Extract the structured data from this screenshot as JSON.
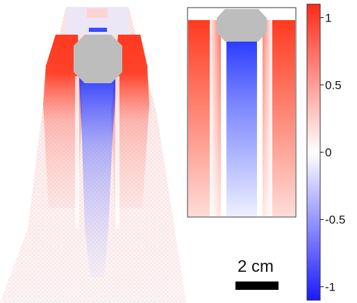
{
  "chart_data": {
    "type": "heatmap",
    "title": "",
    "panels": [
      {
        "name": "",
        "kind": "simulated-field"
      },
      {
        "name": "",
        "kind": "model-field"
      }
    ],
    "colorbar": {
      "min": -1.1,
      "max": 1.1,
      "ticks": [
        1,
        0.5,
        0,
        -0.5,
        -1
      ],
      "tick_labels": [
        "1",
        "0.5",
        "0",
        "-0.5",
        "-1"
      ],
      "colormap": [
        "#1a1aff",
        "#ffffff",
        "#ff2a1a"
      ]
    },
    "scale_bar": {
      "label": "2 cm"
    },
    "colors": {
      "obstacle": "#bdbdbd",
      "positive": "#ff3a20",
      "negative": "#2a3cff"
    }
  }
}
